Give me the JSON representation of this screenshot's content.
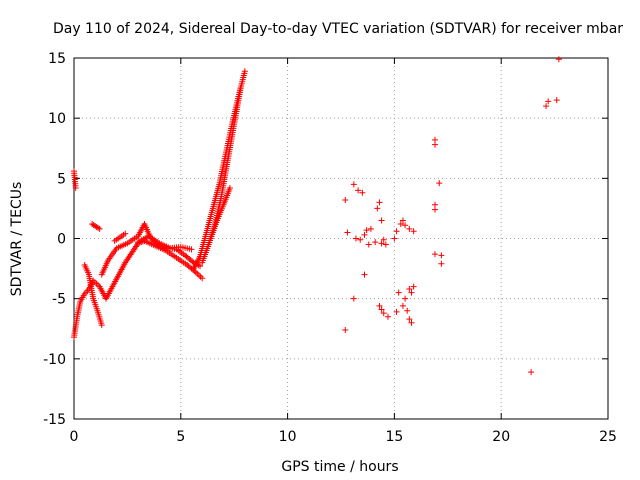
{
  "chart_data": {
    "type": "scatter",
    "title": "Day 110 of 2024, Sidereal Day-to-day VTEC variation (SDTVAR) for receiver mbar",
    "xlabel": "GPS time / hours",
    "ylabel": "SDTVAR / TECUs",
    "xlim": [
      0,
      25
    ],
    "ylim": [
      -15,
      15
    ],
    "xticks": [
      0,
      5,
      10,
      15,
      20,
      25
    ],
    "yticks": [
      -15,
      -10,
      -5,
      0,
      5,
      10,
      15
    ],
    "xtick_labels": [
      "0",
      "5",
      "10",
      "15",
      "20",
      "25"
    ],
    "ytick_labels": [
      "-15",
      "-10",
      "-5",
      "0",
      "5",
      "10",
      "15"
    ],
    "grid": true,
    "marker": "+",
    "marker_color": "#ff0000",
    "segments": [
      {
        "x": [
          0.0,
          0.15,
          0.3,
          0.5,
          0.7
        ],
        "y": [
          -8.2,
          -6.5,
          -5.2,
          -4.6,
          -4.2
        ]
      },
      {
        "x": [
          0.7,
          0.9,
          1.2,
          1.5,
          1.8,
          2.1,
          2.4,
          2.7,
          3.0,
          3.3
        ],
        "y": [
          -4.2,
          -3.5,
          -4.0,
          -5.0,
          -4.0,
          -3.0,
          -2.0,
          -1.2,
          -0.4,
          -0.2
        ]
      },
      {
        "x": [
          0.5,
          0.7,
          0.9,
          1.1,
          1.3
        ],
        "y": [
          -2.2,
          -3.0,
          -5.0,
          -6.0,
          -7.2
        ]
      },
      {
        "x": [
          1.3,
          1.6,
          2.0,
          2.5,
          3.0,
          3.3
        ],
        "y": [
          -3.0,
          -1.8,
          -0.8,
          -0.4,
          0.2,
          1.2
        ]
      },
      {
        "x": [
          3.3,
          3.6,
          4.0,
          4.4,
          4.8,
          5.2,
          5.6,
          5.9
        ],
        "y": [
          1.2,
          0.0,
          -0.5,
          -0.8,
          -0.9,
          -1.4,
          -2.0,
          -2.3
        ]
      },
      {
        "x": [
          3.3,
          3.8,
          4.3,
          4.8,
          5.3,
          5.7,
          6.0
        ],
        "y": [
          -0.2,
          -0.6,
          -1.0,
          -1.6,
          -2.2,
          -2.8,
          -3.3
        ]
      },
      {
        "x": [
          3.0,
          3.5,
          4.0,
          4.5,
          5.0,
          5.5
        ],
        "y": [
          -0.3,
          0.2,
          -0.4,
          -0.8,
          -0.7,
          -0.9
        ]
      },
      {
        "x": [
          5.6,
          5.9,
          6.2,
          6.5,
          6.8,
          7.1,
          7.4,
          7.7,
          8.0
        ],
        "y": [
          -2.5,
          -1.5,
          0.5,
          2.5,
          4.5,
          7.0,
          9.5,
          11.8,
          13.9
        ]
      },
      {
        "x": [
          6.0,
          6.3,
          6.6,
          6.9,
          7.2,
          7.5,
          7.8
        ],
        "y": [
          -2.0,
          -0.5,
          1.2,
          3.5,
          6.5,
          9.5,
          12.5
        ]
      },
      {
        "x": [
          6.1,
          6.4,
          6.7,
          7.0,
          7.3
        ],
        "y": [
          -1.5,
          0.0,
          1.5,
          2.8,
          4.2
        ]
      },
      {
        "x": [
          0.0,
          0.08
        ],
        "y": [
          5.6,
          4.2
        ]
      },
      {
        "x": [
          0.85,
          1.2
        ],
        "y": [
          1.2,
          0.8
        ]
      },
      {
        "x": [
          1.9,
          2.4
        ],
        "y": [
          -0.2,
          0.4
        ]
      }
    ],
    "points": [
      {
        "x": 12.7,
        "y": -7.6
      },
      {
        "x": 12.7,
        "y": 3.2
      },
      {
        "x": 12.8,
        "y": 0.5
      },
      {
        "x": 13.1,
        "y": -5.0
      },
      {
        "x": 13.1,
        "y": 4.5
      },
      {
        "x": 13.2,
        "y": 0.0
      },
      {
        "x": 13.3,
        "y": 4.0
      },
      {
        "x": 13.4,
        "y": -0.1
      },
      {
        "x": 13.5,
        "y": 3.8
      },
      {
        "x": 13.6,
        "y": 0.3
      },
      {
        "x": 13.6,
        "y": -3.0
      },
      {
        "x": 13.7,
        "y": 0.7
      },
      {
        "x": 13.8,
        "y": -0.5
      },
      {
        "x": 13.9,
        "y": 0.8
      },
      {
        "x": 14.1,
        "y": -0.3
      },
      {
        "x": 14.2,
        "y": 2.5
      },
      {
        "x": 14.3,
        "y": 3.0
      },
      {
        "x": 14.4,
        "y": 1.5
      },
      {
        "x": 14.3,
        "y": -5.6
      },
      {
        "x": 14.4,
        "y": -5.9
      },
      {
        "x": 14.5,
        "y": -6.2
      },
      {
        "x": 14.4,
        "y": -0.4
      },
      {
        "x": 14.5,
        "y": -0.1
      },
      {
        "x": 14.6,
        "y": -0.5
      },
      {
        "x": 14.7,
        "y": -6.5
      },
      {
        "x": 15.0,
        "y": 0.0
      },
      {
        "x": 15.1,
        "y": 0.6
      },
      {
        "x": 15.1,
        "y": -6.1
      },
      {
        "x": 15.2,
        "y": -4.5
      },
      {
        "x": 15.3,
        "y": 1.2
      },
      {
        "x": 15.4,
        "y": 1.5
      },
      {
        "x": 15.5,
        "y": 1.1
      },
      {
        "x": 15.4,
        "y": -5.6
      },
      {
        "x": 15.5,
        "y": -5.0
      },
      {
        "x": 15.6,
        "y": -6.0
      },
      {
        "x": 15.7,
        "y": -6.7
      },
      {
        "x": 15.8,
        "y": -7.0
      },
      {
        "x": 15.7,
        "y": -4.2
      },
      {
        "x": 15.8,
        "y": -4.5
      },
      {
        "x": 15.9,
        "y": -4.0
      },
      {
        "x": 15.7,
        "y": 0.8
      },
      {
        "x": 15.9,
        "y": 0.6
      },
      {
        "x": 16.9,
        "y": 8.2
      },
      {
        "x": 16.9,
        "y": 7.8
      },
      {
        "x": 16.9,
        "y": 2.8
      },
      {
        "x": 16.9,
        "y": 2.4
      },
      {
        "x": 16.9,
        "y": -1.3
      },
      {
        "x": 17.1,
        "y": 4.6
      },
      {
        "x": 17.2,
        "y": -1.4
      },
      {
        "x": 17.2,
        "y": -2.1
      },
      {
        "x": 21.4,
        "y": -11.1
      },
      {
        "x": 22.1,
        "y": 11.0
      },
      {
        "x": 22.2,
        "y": 11.4
      },
      {
        "x": 22.6,
        "y": 11.5
      },
      {
        "x": 22.7,
        "y": 14.9
      }
    ]
  }
}
